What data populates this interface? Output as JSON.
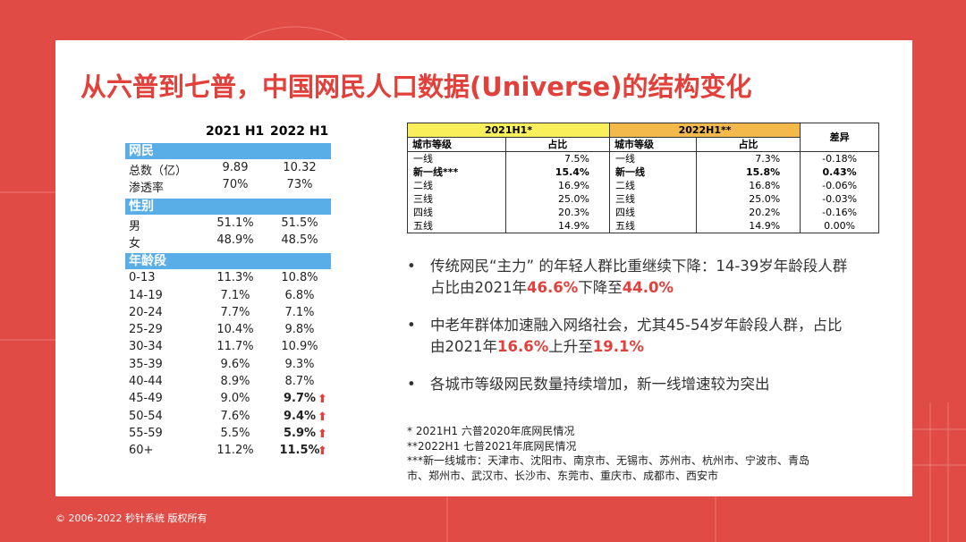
{
  "title": "从六普到七普，中国网民人口数据(Universe)的结构变化",
  "left_table": {
    "headers": [
      "2021 H1",
      "2022 H1"
    ],
    "sections": [
      {
        "name": "网民",
        "rows": [
          [
            "总数（亿）",
            "9.89",
            "10.32"
          ],
          [
            "渗透率",
            "70%",
            "73%"
          ]
        ]
      },
      {
        "name": "性别",
        "rows": [
          [
            "男",
            "51.1%",
            "51.5%"
          ],
          [
            "女",
            "48.9%",
            "48.5%"
          ]
        ]
      },
      {
        "name": "年龄段",
        "rows": [
          [
            "0-13",
            "11.3%",
            "10.8%"
          ],
          [
            "14-19",
            "7.1%",
            "6.8%"
          ],
          [
            "20-24",
            "7.7%",
            "7.1%"
          ],
          [
            "25-29",
            "10.4%",
            "9.8%"
          ],
          [
            "30-34",
            "11.7%",
            "10.9%"
          ],
          [
            "35-39",
            "9.6%",
            "9.3%"
          ],
          [
            "40-44",
            "8.9%",
            "8.7%"
          ],
          [
            "45-49",
            "9.0%",
            "9.7%",
            true
          ],
          [
            "50-54",
            "7.6%",
            "9.4%",
            true
          ],
          [
            "55-59",
            "5.5%",
            "5.9%",
            true
          ],
          [
            "60+",
            "11.2%",
            "11.5%",
            true
          ]
        ]
      }
    ]
  },
  "right_table": {
    "groups": [
      "2021H1*",
      "2022H1**",
      "差异"
    ],
    "subheaders": [
      "城市等级",
      "占比",
      "城市等级",
      "占比"
    ],
    "rows": [
      [
        "一线",
        "7.5%",
        "一线",
        "7.3%",
        "-0.18%"
      ],
      [
        "新一线***",
        "15.4%",
        "新一线",
        "15.8%",
        "0.43%",
        true
      ],
      [
        "二线",
        "16.9%",
        "二线",
        "16.8%",
        "-0.06%"
      ],
      [
        "三线",
        "25.0%",
        "三线",
        "25.0%",
        "-0.03%"
      ],
      [
        "四线",
        "20.3%",
        "四线",
        "20.2%",
        "-0.16%"
      ],
      [
        "五线",
        "14.9%",
        "五线",
        "14.9%",
        "0.00%"
      ]
    ]
  },
  "bullets": [
    [
      {
        "text": "传统网民“主力” 的年轻人群比重继续下降：14-39岁年龄段人群占比由2021年"
      },
      {
        "text": "46.6%",
        "red": true
      },
      {
        "text": "下降至"
      },
      {
        "text": "44.0%",
        "red": true
      }
    ],
    [
      {
        "text": "中老年群体加速融入网络社会，尤其45-54岁年龄段人群，占比由2021年"
      },
      {
        "text": "16.6%",
        "red": true
      },
      {
        "text": "上升至"
      },
      {
        "text": "19.1%",
        "red": true
      }
    ],
    [
      {
        "text": "各城市等级网民数量持续增加，新一线增速较为突出"
      }
    ]
  ],
  "notes": [
    "* 2021H1 六普2020年底网民情况",
    "**2022H1 七普2021年底网民情况",
    "***新一线城市：天津市、沈阳市、南京市、无锡市、苏州市、杭州市、宁波市、青岛市、郑州市、武汉市、长沙市、东莞市、重庆市、成都市、西安市"
  ],
  "copyright": "© 2006-2022 秒针系统 版权所有"
}
